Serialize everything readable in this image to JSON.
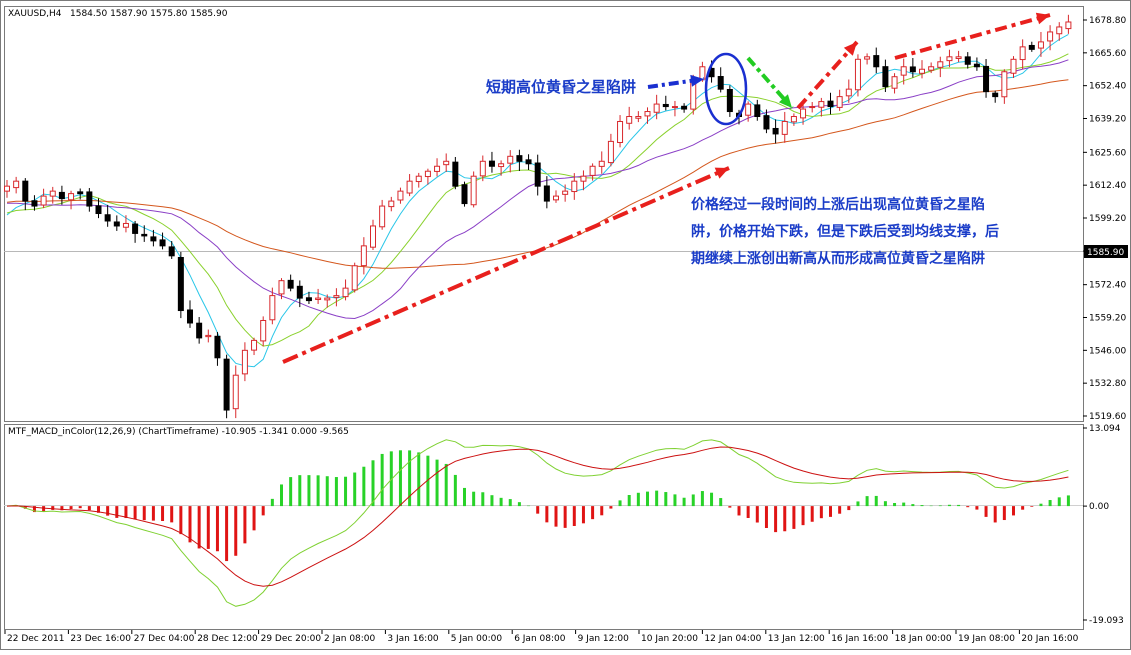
{
  "colors": {
    "background": "#ffffff",
    "bull_candle": "#d8282c",
    "bear_candle": "#000000",
    "ma_fast": "#29c6e8",
    "ma_mid": "#8ad12d",
    "ma_slow": "#8a3fc6",
    "ma_long": "#d4571d",
    "macd_pos": "#28d228",
    "macd_neg": "#e01414",
    "signal_line": "#cc1111",
    "macd_line": "#7fd132",
    "arrow_red": "#e8201d",
    "arrow_blue": "#1a2fd0",
    "arrow_green": "#22cc22",
    "annotation_text": "#1a3cc8"
  },
  "header": {
    "symbol": "XAUUSD,H4",
    "ohlc": "1584.50 1587.90 1575.80 1585.90"
  },
  "price_axis": {
    "ticks": [
      "1678.80",
      "1665.60",
      "1652.40",
      "1639.20",
      "1625.60",
      "1612.40",
      "1599.20",
      "1585.90",
      "1572.40",
      "1559.20",
      "1546.00",
      "1532.80",
      "1519.60"
    ],
    "current_price": "1585.90"
  },
  "indicator": {
    "title": "MTF_MACD_inColor(12,26,9) (ChartTimeframe) -10.905 -1.341 0.000 -9.565",
    "ticks": [
      "13.094",
      "0.00",
      "-19.093"
    ]
  },
  "time_axis": {
    "labels": [
      "22 Dec 2011",
      "23 Dec 16:00",
      "27 Dec 04:00",
      "28 Dec 12:00",
      "29 Dec 20:00",
      "2 Jan 08:00",
      "3 Jan 16:00",
      "5 Jan 00:00",
      "6 Jan 08:00",
      "9 Jan 12:00",
      "10 Jan 20:00",
      "12 Jan 04:00",
      "13 Jan 12:00",
      "16 Jan 16:00",
      "18 Jan 00:00",
      "19 Jan 08:00",
      "20 Jan 16:00"
    ]
  },
  "annotations": {
    "short_pattern": "短期高位黄昏之星陷阱",
    "explanation_line1": "价格经过一段时间的上涨后出现高位黄昏之星陷",
    "explanation_line2": "阱，价格开始下跌，但是下跌后受到均线支撑，后",
    "explanation_line3": "期继续上涨创出新高从而形成高位黄昏之星陷阱"
  },
  "chart_data": [
    {
      "type": "candlestick",
      "title": "XAUUSD,H4",
      "ylim": [
        1516,
        1684
      ],
      "close_series": [
        1612,
        1614,
        1606,
        1604,
        1608,
        1610,
        1607,
        1609,
        1609,
        1604,
        1601,
        1598,
        1596,
        1597,
        1593,
        1592,
        1590,
        1588,
        1584,
        1562,
        1557,
        1551,
        1552,
        1543,
        1522,
        1536,
        1546,
        1550,
        1558,
        1568,
        1574,
        1571,
        1567,
        1566,
        1567,
        1567,
        1568,
        1571,
        1580,
        1588,
        1596,
        1604,
        1606,
        1610,
        1614,
        1616,
        1618,
        1620,
        1622,
        1612,
        1605,
        1616,
        1622,
        1620,
        1621,
        1624,
        1622,
        1621,
        1612,
        1606,
        1608,
        1610,
        1614,
        1616,
        1620,
        1622,
        1630,
        1638,
        1640,
        1640,
        1642,
        1645,
        1644,
        1644,
        1643,
        1655,
        1660,
        1656,
        1651,
        1642,
        1640,
        1645,
        1640,
        1635,
        1633,
        1638,
        1640,
        1643,
        1644,
        1646,
        1644,
        1648,
        1651,
        1663,
        1664,
        1660,
        1652,
        1656,
        1660,
        1658,
        1659,
        1660,
        1662,
        1664,
        1664,
        1661,
        1660,
        1650,
        1648,
        1658,
        1663,
        1668,
        1667,
        1670,
        1674,
        1676,
        1678
      ]
    },
    {
      "type": "bar",
      "title": "MTF_MACD_inColor(12,26,9) (ChartTimeframe)",
      "ylim": [
        -19.093,
        13.094
      ],
      "values_summary": "histogram negative (-1 to -7) through 28 Dec, positive peak about +6 around 3 Jan, near zero to slightly negative 5-13 Jan, small positive 16 Jan, small negative 18-20 Jan, slightly positive at end"
    }
  ]
}
